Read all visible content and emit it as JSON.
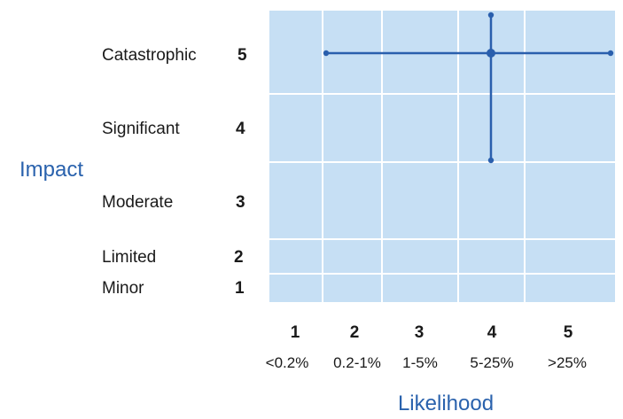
{
  "colors": {
    "cell_fill": "#c6dff4",
    "grid_line": "#ffffff",
    "marker": "#2a5fad",
    "axis_title": "#2a62ad",
    "label_text": "#1a1a1a"
  },
  "matrix": {
    "y_axis": {
      "title": "Impact",
      "levels": [
        {
          "score": "5",
          "name": "Catastrophic"
        },
        {
          "score": "4",
          "name": "Significant"
        },
        {
          "score": "3",
          "name": "Moderate"
        },
        {
          "score": "2",
          "name": "Limited"
        },
        {
          "score": "1",
          "name": "Minor"
        }
      ]
    },
    "x_axis": {
      "title": "Likelihood",
      "levels": [
        {
          "score": "1",
          "range": "<0.2%"
        },
        {
          "score": "2",
          "range": "0.2-1%"
        },
        {
          "score": "3",
          "range": "1-5%"
        },
        {
          "score": "4",
          "range": "5-25%"
        },
        {
          "score": "5",
          "range": ">25%"
        }
      ]
    },
    "assessment": {
      "likelihood": 4,
      "impact": 5,
      "likelihood_range": [
        2,
        5
      ],
      "impact_range": [
        3.6,
        5.5
      ]
    }
  }
}
